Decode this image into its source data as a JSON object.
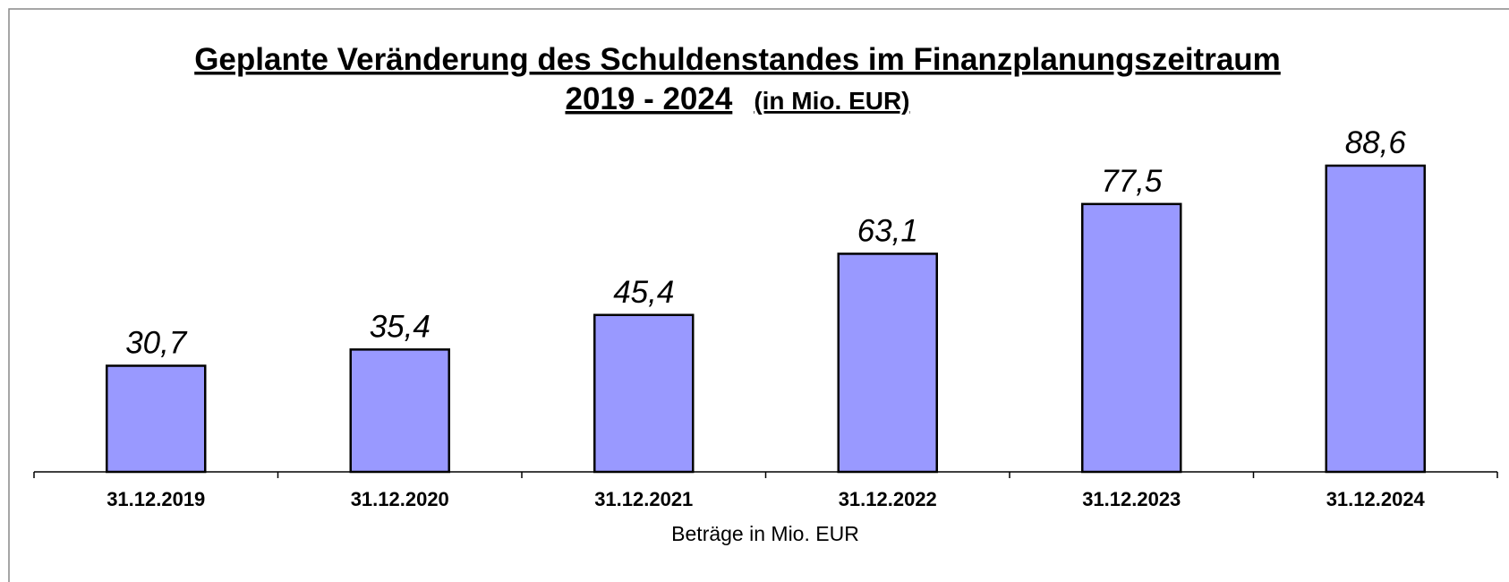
{
  "chart_data": {
    "type": "bar",
    "title": "Geplante Veränderung des Schuldenstandes im Finanzplanungszeitraum",
    "subtitle": "2019 - 2024",
    "subtitle_note": "(in Mio. EUR)",
    "x_label": "Beträge in Mio. EUR",
    "categories": [
      "31.12.2019",
      "31.12.2020",
      "31.12.2021",
      "31.12.2022",
      "31.12.2023",
      "31.12.2024"
    ],
    "values": [
      30.7,
      35.4,
      45.4,
      63.1,
      77.5,
      88.6
    ],
    "value_labels": [
      "30,7",
      "35,4",
      "45,4",
      "63,1",
      "77,5",
      "88,6"
    ],
    "color": "#9999ff",
    "ylim": [
      0,
      100
    ]
  }
}
